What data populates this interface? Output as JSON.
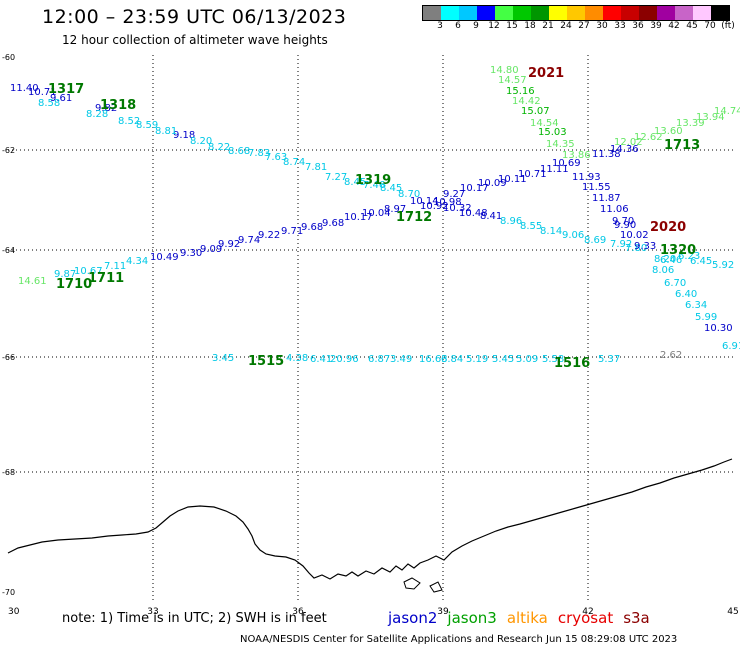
{
  "header": {
    "title": "12:00 – 23:59 UTC 06/13/2023",
    "subtitle": "12 hour collection of altimeter wave heights"
  },
  "colorbar": {
    "ticks": [
      "3",
      "6",
      "9",
      "12",
      "15",
      "18",
      "21",
      "24",
      "27",
      "30",
      "33",
      "36",
      "39",
      "42",
      "45",
      "70",
      "(ft)"
    ],
    "colors": [
      "#7f7f7f",
      "#00ffff",
      "#00c8ff",
      "#0000ff",
      "#44ff44",
      "#00c800",
      "#009600",
      "#ffff00",
      "#ffc800",
      "#ff8c00",
      "#ff0000",
      "#c80000",
      "#8b0000",
      "#a000a0",
      "#c864c8",
      "#ffc8ff",
      "#000000"
    ]
  },
  "map": {
    "lon_labels": [
      "30",
      "33",
      "36",
      "39",
      "42",
      "45"
    ],
    "lat_labels": [
      "-60",
      "-62",
      "-64",
      "-66",
      "-68",
      "-70"
    ]
  },
  "tracks": [
    {
      "color": "#0000c8",
      "values": [
        "11.40",
        "10.71",
        "9.61",
        "9.82",
        "9.18"
      ]
    },
    {
      "color": "#00c8e6",
      "values": [
        "8.58",
        "8.28",
        "8.52",
        "8.59",
        "8.81",
        "8.20",
        "8.22",
        "8.68",
        "7.83",
        "7.63",
        "8.74",
        "7.81",
        "7.27",
        "8.45",
        "7.46",
        "8.45",
        "8.70"
      ]
    },
    {
      "color": "#0000c8",
      "values": [
        "10.14",
        "10.98",
        "10.92",
        "10.32",
        "10.48",
        "8.41"
      ]
    },
    {
      "color": "#00c8e6",
      "values": [
        "8.96",
        "8.55",
        "8.14",
        "9.06",
        "8.69",
        "7.92",
        "7.80",
        "8.20"
      ]
    },
    {
      "color": "#0000c8",
      "values": [
        "10.49",
        "9.30",
        "9.09",
        "9.92",
        "9.74",
        "9.22",
        "9.71",
        "9.68",
        "9.68",
        "10.17",
        "10.04",
        "8.97",
        "9.27",
        "10.17",
        "10.09",
        "10.11",
        "10.71",
        "11.11",
        "11.38",
        "14.36",
        "10.69"
      ]
    },
    {
      "color": "#00c8e6",
      "values": [
        "6.46",
        "6.23",
        "8.06",
        "6.70",
        "6.40",
        "6.34",
        "5.99",
        "6.91",
        "5.92",
        "6.45"
      ]
    },
    {
      "color": "#0000c8",
      "values": [
        "11.93",
        "11.55",
        "11.87",
        "11.06",
        "9.70",
        "9.90",
        "10.02",
        "9.33",
        "10.30"
      ]
    },
    {
      "color": "#66e666",
      "values": [
        "14.80",
        "14.57",
        "14.42",
        "14.54",
        "14.35",
        "13.86",
        "12.02",
        "12.62",
        "13.60",
        "13.39",
        "13.94",
        "14.74"
      ]
    },
    {
      "color": "#00b400",
      "values": [
        "15.16",
        "15.07",
        "15.03"
      ]
    },
    {
      "color": "#00c8e6",
      "values": [
        "3.45",
        "4.38",
        "6.41",
        "20.96",
        "6.87",
        "3.49",
        "16.63",
        "6.84",
        "5.19",
        "5.45",
        "5.09",
        "5.58",
        "5.37"
      ]
    },
    {
      "color": "#00c8e6",
      "values": [
        "9.87",
        "10.67",
        "7.11",
        "4.34"
      ]
    },
    {
      "color": "#66e666",
      "values": [
        "14.61"
      ]
    },
    {
      "color": "#808080",
      "values": [
        "2.62"
      ]
    }
  ],
  "pass_labels": [
    {
      "text": "1317",
      "color": "#007800"
    },
    {
      "text": "1318",
      "color": "#007800"
    },
    {
      "text": "1319",
      "color": "#007800"
    },
    {
      "text": "1712",
      "color": "#007800"
    },
    {
      "text": "1710",
      "color": "#007800"
    },
    {
      "text": "1711",
      "color": "#007800"
    },
    {
      "text": "1713",
      "color": "#007800"
    },
    {
      "text": "1320",
      "color": "#007800"
    },
    {
      "text": "1515",
      "color": "#007800"
    },
    {
      "text": "1516",
      "color": "#007800"
    },
    {
      "text": "2021",
      "color": "#8b0000"
    },
    {
      "text": "2020",
      "color": "#8b0000"
    }
  ],
  "footer": {
    "note": "note:  1) Time is in UTC;  2) SWH is in feet",
    "satellites": [
      {
        "name": "jason2",
        "color": "#0000c8"
      },
      {
        "name": "jason3",
        "color": "#00a000"
      },
      {
        "name": "altika",
        "color": "#ff9600"
      },
      {
        "name": "cryosat",
        "color": "#e60000"
      },
      {
        "name": "s3a",
        "color": "#8b0000"
      }
    ],
    "credit": "NOAA/NESDIS Center for Satellite Applications and Research     Jun 15 08:29:08 UTC 2023"
  }
}
